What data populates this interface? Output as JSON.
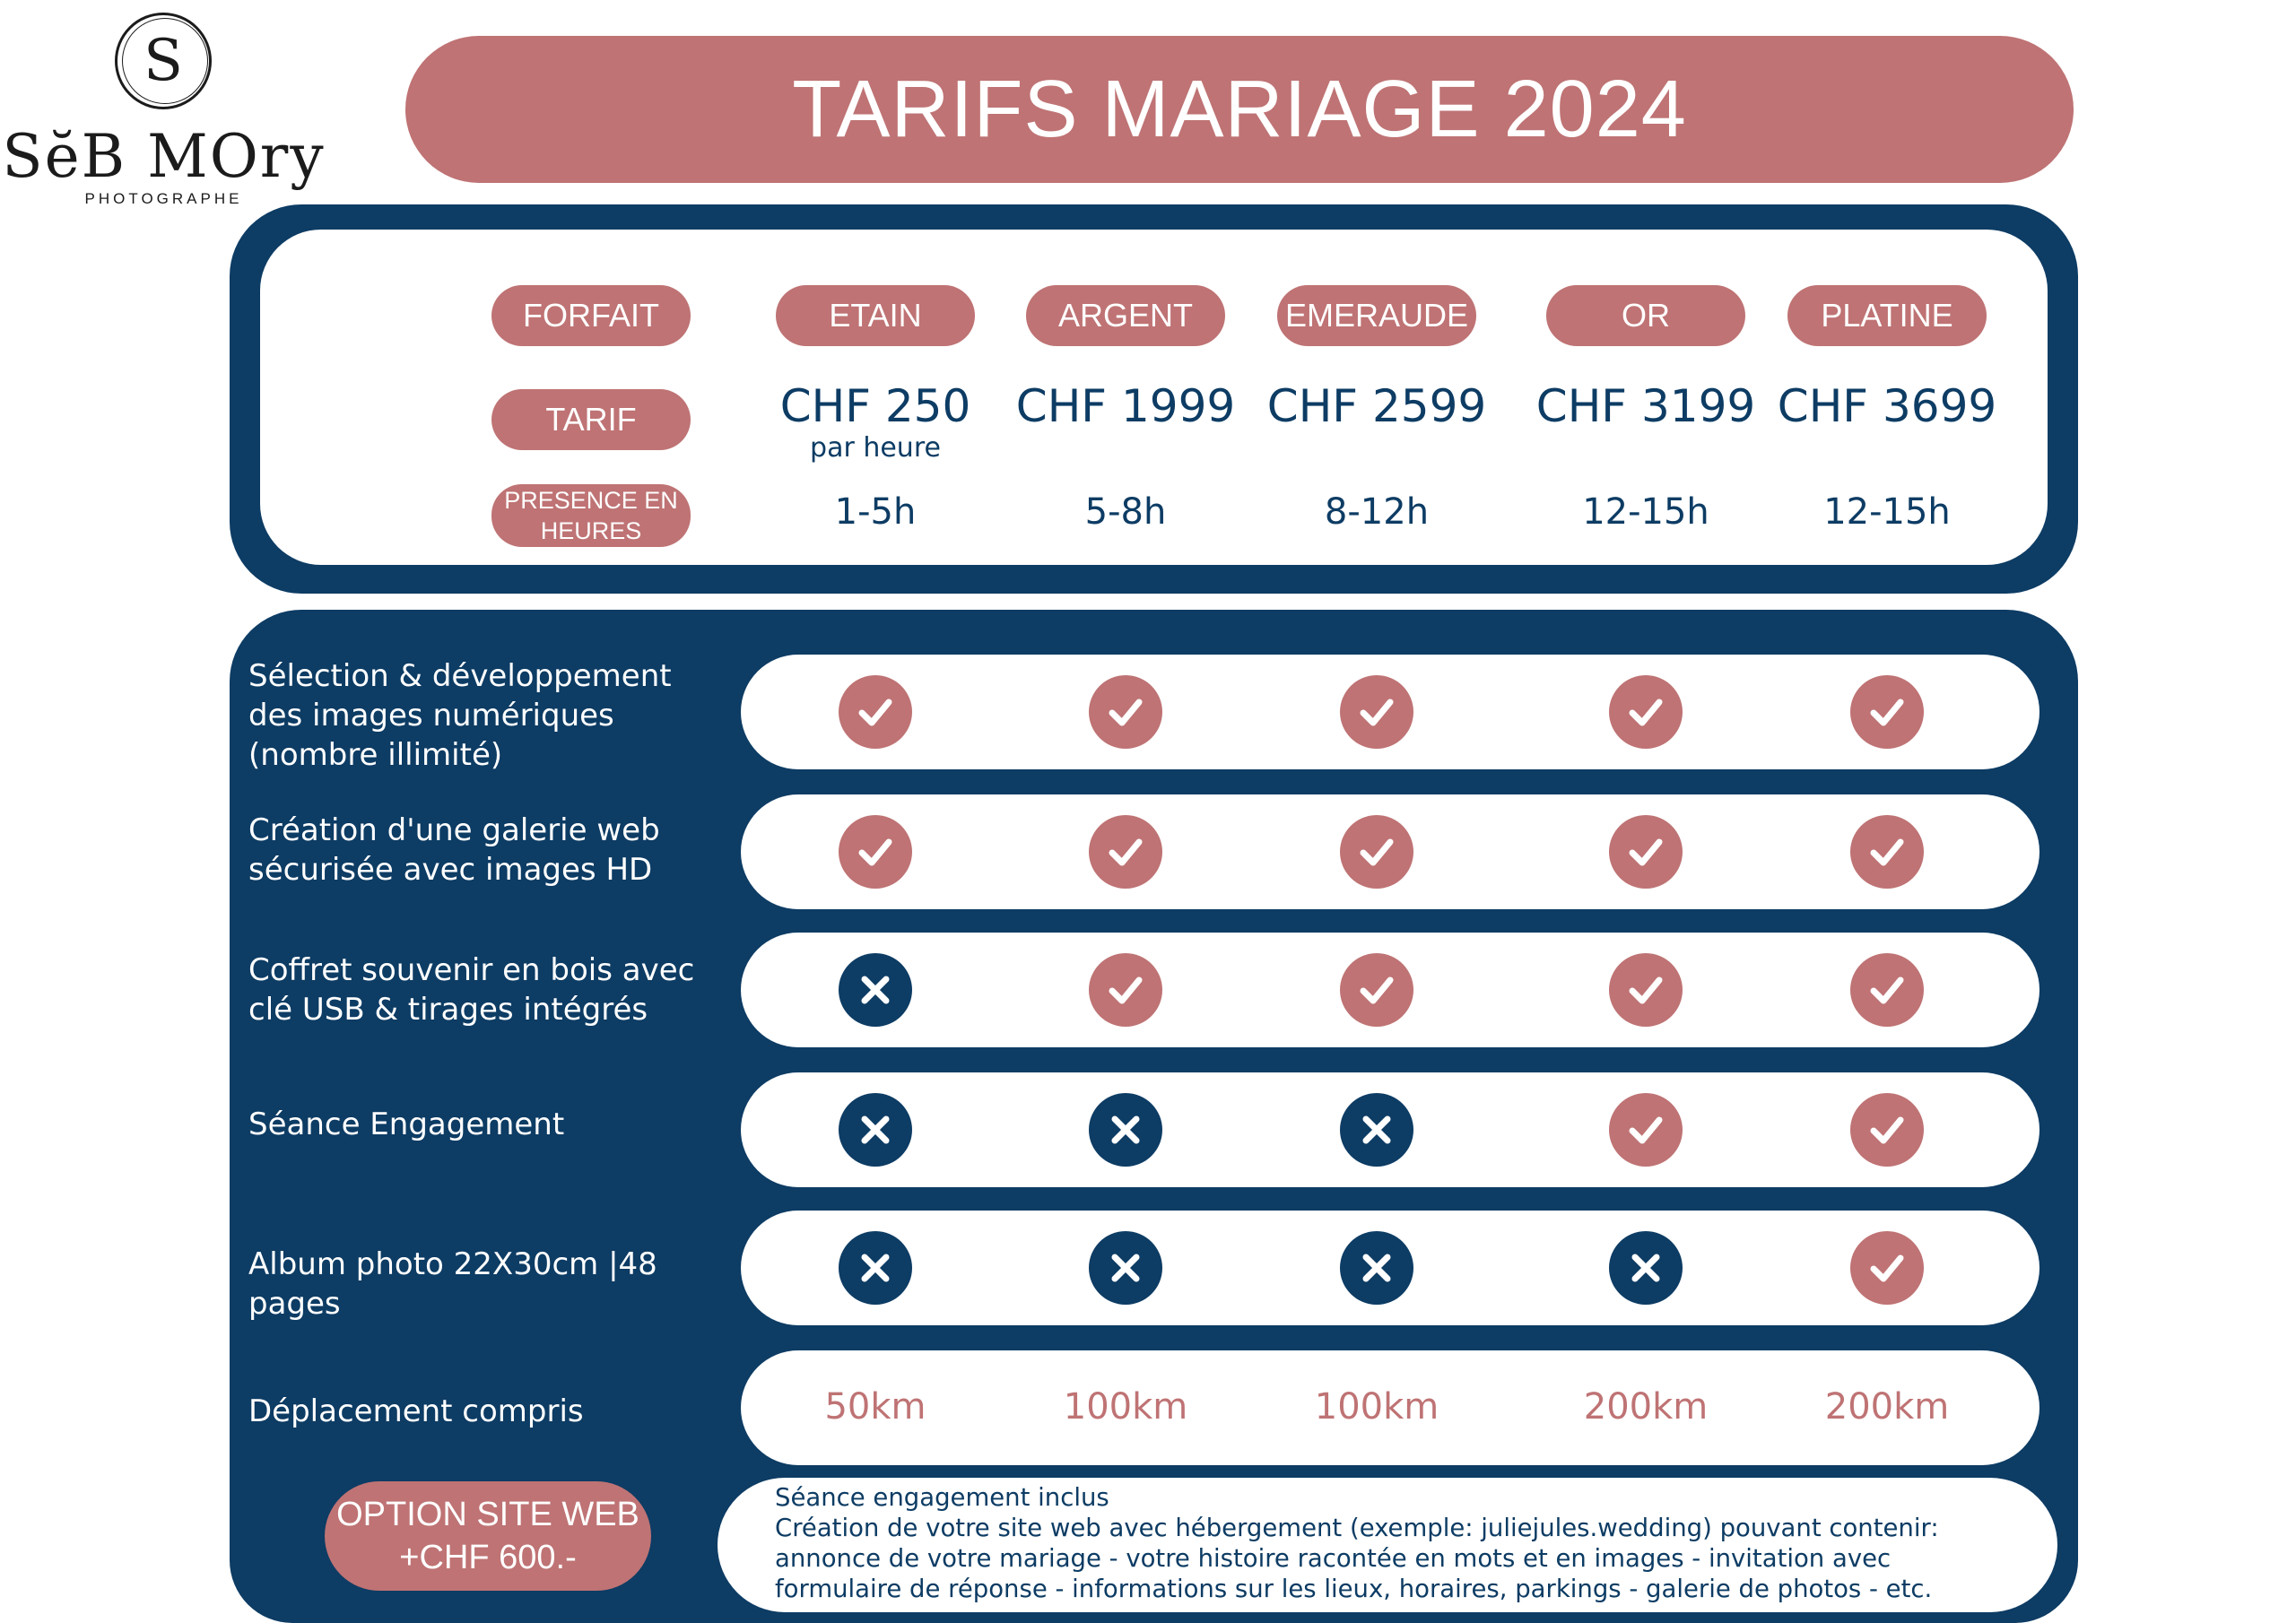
{
  "logo": {
    "initial": "S",
    "name": "SĕB MOry",
    "subtitle": "PHOTOGRAPHE"
  },
  "title": "TARIFS MARIAGE 2024",
  "header_labels": {
    "forfait": "FORFAIT",
    "tarif": "TARIF",
    "presence": "PRESENCE EN HEURES"
  },
  "packages": [
    {
      "name": "ETAIN",
      "price": "CHF 250",
      "price_note": "par heure",
      "hours": "1-5h",
      "travel": "50km"
    },
    {
      "name": "ARGENT",
      "price": "CHF 1999",
      "price_note": "",
      "hours": "5-8h",
      "travel": "100km"
    },
    {
      "name": "EMERAUDE",
      "price": "CHF 2599",
      "price_note": "",
      "hours": "8-12h",
      "travel": "100km"
    },
    {
      "name": "OR",
      "price": "CHF 3199",
      "price_note": "",
      "hours": "12-15h",
      "travel": "200km"
    },
    {
      "name": "PLATINE",
      "price": "CHF 3699",
      "price_note": "",
      "hours": "12-15h",
      "travel": "200km"
    }
  ],
  "features": [
    {
      "label": "Sélection & développement des images numériques (nombre illimité)",
      "included": [
        true,
        true,
        true,
        true,
        true
      ]
    },
    {
      "label": "Création d'une galerie web sécurisée avec images HD",
      "included": [
        true,
        true,
        true,
        true,
        true
      ]
    },
    {
      "label": "Coffret souvenir en bois avec clé USB & tirages intégrés",
      "included": [
        false,
        true,
        true,
        true,
        true
      ]
    },
    {
      "label": "Séance Engagement",
      "included": [
        false,
        false,
        false,
        true,
        true
      ]
    },
    {
      "label": "Album photo 22X30cm |48 pages",
      "included": [
        false,
        false,
        false,
        false,
        true
      ]
    }
  ],
  "travel_label": "Déplacement compris",
  "option": {
    "line1": "OPTION SITE WEB",
    "line2": "+CHF 600.-",
    "description": "Séance engagement inclus\nCréation de votre site web avec hébergement (exemple: juliejules.wedding) pouvant contenir: annonce de votre mariage - votre histoire racontée en mots et en images - invitation avec formulaire de réponse - informations sur les lieux, horaires, parkings - galerie de photos - etc."
  },
  "icons": {
    "included": "check-icon",
    "excluded": "cross-icon"
  },
  "colors": {
    "rose": "#bf7374",
    "navy": "#0d3c64",
    "white": "#ffffff"
  }
}
